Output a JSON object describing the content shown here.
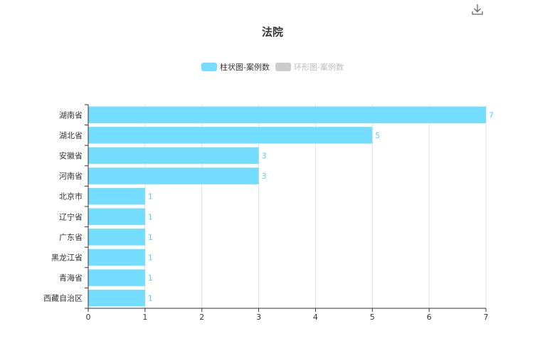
{
  "toolbar": {
    "download_icon": "download-icon"
  },
  "title": "法院",
  "legend": [
    {
      "label": "柱状图-案例数",
      "color": "#74dcff",
      "active": true
    },
    {
      "label": "环形图-案例数",
      "color": "#cccccc",
      "active": false
    }
  ],
  "colors": {
    "bar": "#74dcff",
    "label": "#5ecbf5",
    "axis": "#333333",
    "grid": "#e0e0e0"
  },
  "chart_data": {
    "type": "bar",
    "orientation": "horizontal",
    "title": "法院",
    "categories": [
      "湖南省",
      "湖北省",
      "安徽省",
      "河南省",
      "北京市",
      "辽宁省",
      "广东省",
      "黑龙江省",
      "青海省",
      "西藏自治区"
    ],
    "series": [
      {
        "name": "柱状图-案例数",
        "values": [
          7,
          5,
          3,
          3,
          1,
          1,
          1,
          1,
          1,
          1
        ]
      }
    ],
    "xlim": [
      0,
      7
    ],
    "xticks": [
      "0",
      "1",
      "2",
      "3",
      "4",
      "5",
      "6",
      "7"
    ],
    "grid": true,
    "legend_position": "top-center"
  }
}
